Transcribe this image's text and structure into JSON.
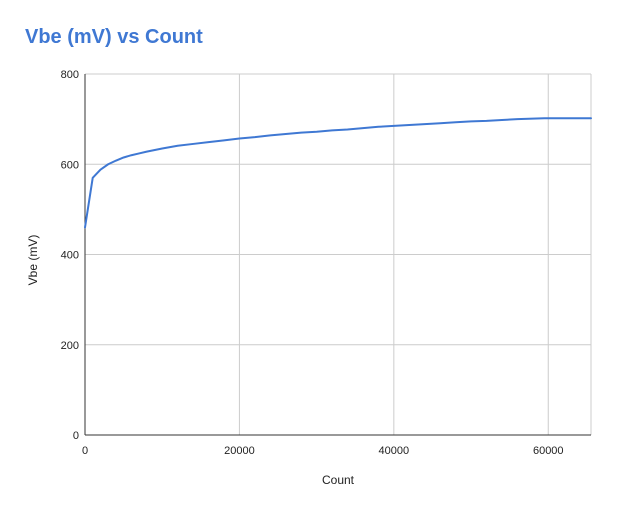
{
  "chart_data": {
    "type": "line",
    "title": "Vbe (mV) vs Count",
    "xlabel": "Count",
    "ylabel": "Vbe (mV)",
    "xlim": [
      0,
      65536
    ],
    "ylim": [
      0,
      800
    ],
    "x_ticks": [
      0,
      20000,
      40000,
      60000
    ],
    "y_ticks": [
      0,
      200,
      400,
      600,
      800
    ],
    "grid": true,
    "legend": "none",
    "series": [
      {
        "color": "#3f78d3",
        "x": [
          0,
          1000,
          2000,
          3000,
          4000,
          5000,
          6000,
          7000,
          8000,
          10000,
          12000,
          14000,
          16000,
          18000,
          20000,
          22000,
          24000,
          26000,
          28000,
          30000,
          32000,
          34000,
          36000,
          38000,
          40000,
          42000,
          44000,
          46000,
          48000,
          50000,
          52000,
          54000,
          56000,
          58000,
          59500,
          62000,
          65536
        ],
        "y": [
          460,
          570,
          588,
          600,
          608,
          615,
          620,
          624,
          628,
          635,
          641,
          645,
          649,
          653,
          657,
          660,
          664,
          667,
          670,
          672,
          675,
          677,
          680,
          683,
          685,
          687,
          689,
          691,
          693,
          695,
          696,
          698,
          700,
          701,
          702,
          702,
          702
        ]
      }
    ]
  }
}
